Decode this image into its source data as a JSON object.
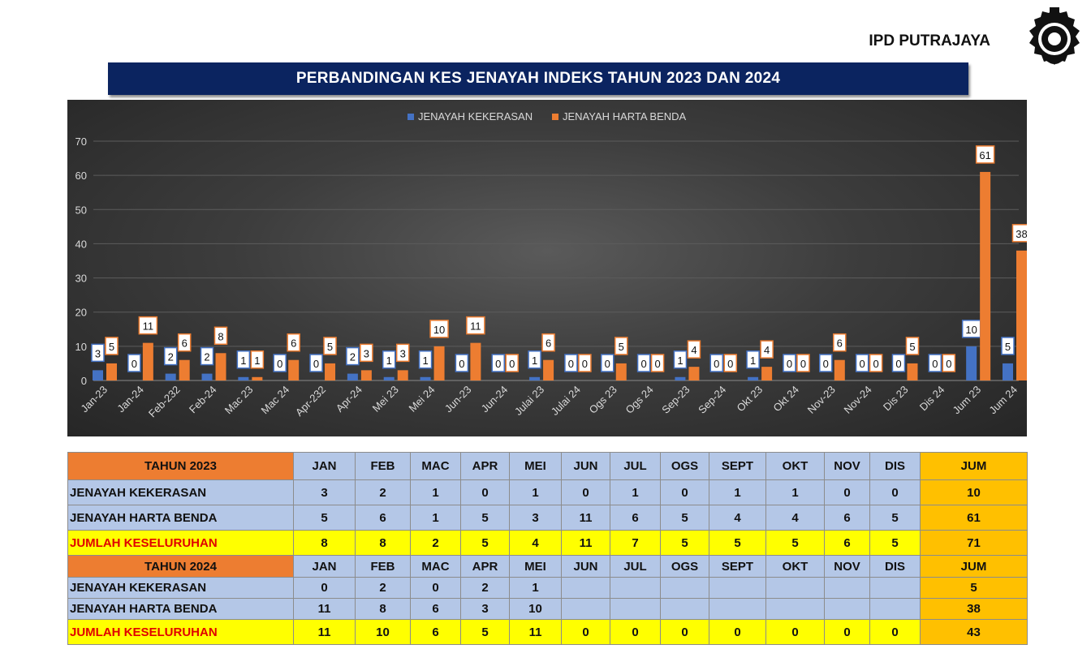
{
  "header": {
    "org_name": "IPD PUTRAJAYA",
    "title": "PERBANDINGAN KES JENAYAH INDEKS TAHUN 2023 DAN 2024"
  },
  "colors": {
    "series_kekerasan": "#4472c4",
    "series_harta_benda": "#ed7d31",
    "title_bar": "#0b2460",
    "year_header": "#ed7d31",
    "table_body": "#b4c7e7",
    "total_row": "#ffff00",
    "jum_column": "#ffc000",
    "total_label_text": "#e00000"
  },
  "chart_data": {
    "type": "bar",
    "categories": [
      "Jan-23",
      "Jan-24",
      "Feb-232",
      "Feb-24",
      "Mac 23",
      "Mac 24",
      "Apr-232",
      "Apr-24",
      "Mei 23",
      "Mei 24",
      "Jun-23",
      "Jun-24",
      "Julai 23",
      "Julai 24",
      "Ogs 23",
      "Ogs 24",
      "Sep-23",
      "Sep-24",
      "Okt 23",
      "Okt 24",
      "Nov-23",
      "Nov-24",
      "Dis 23",
      "Dis 24",
      "Jum  23",
      "Jum 24"
    ],
    "series": [
      {
        "name": "JENAYAH KEKERASAN",
        "values": [
          3,
          0,
          2,
          2,
          1,
          0,
          0,
          2,
          1,
          1,
          0,
          0,
          1,
          0,
          0,
          0,
          1,
          0,
          1,
          0,
          0,
          0,
          0,
          0,
          10,
          5
        ]
      },
      {
        "name": "JENAYAH HARTA BENDA",
        "values": [
          5,
          11,
          6,
          8,
          1,
          6,
          5,
          3,
          3,
          10,
          11,
          0,
          6,
          0,
          5,
          0,
          4,
          0,
          4,
          0,
          6,
          0,
          5,
          0,
          61,
          38
        ]
      }
    ],
    "yticks": [
      "0",
      "10",
      "20",
      "30",
      "40",
      "50",
      "60",
      "70"
    ],
    "ylim": [
      0,
      70
    ],
    "grid": true,
    "legend": "top-center"
  },
  "table": {
    "months": [
      "JAN",
      "FEB",
      "MAC",
      "APR",
      "MEI",
      "JUN",
      "JUL",
      "OGS",
      "SEPT",
      "OKT",
      "NOV",
      "DIS"
    ],
    "jum_label": "JUM",
    "y2023": {
      "label": "TAHUN 2023",
      "kekerasan": {
        "label": "JENAYAH KEKERASAN",
        "values": [
          "3",
          "2",
          "1",
          "0",
          "1",
          "0",
          "1",
          "0",
          "1",
          "1",
          "0",
          "0"
        ],
        "jum": "10"
      },
      "harta": {
        "label": "JENAYAH HARTA BENDA",
        "values": [
          "5",
          "6",
          "1",
          "5",
          "3",
          "11",
          "6",
          "5",
          "4",
          "4",
          "6",
          "5"
        ],
        "jum": "61"
      },
      "total": {
        "label": "JUMLAH KESELURUHAN",
        "values": [
          "8",
          "8",
          "2",
          "5",
          "4",
          "11",
          "7",
          "5",
          "5",
          "5",
          "6",
          "5"
        ],
        "jum": "71"
      }
    },
    "y2024": {
      "label": "TAHUN 2024",
      "kekerasan": {
        "label": "JENAYAH KEKERASAN",
        "values": [
          "0",
          "2",
          "0",
          "2",
          "1",
          "",
          "",
          "",
          "",
          "",
          "",
          ""
        ],
        "jum": "5"
      },
      "harta": {
        "label": "JENAYAH HARTA BENDA",
        "values": [
          "11",
          "8",
          "6",
          "3",
          "10",
          "",
          "",
          "",
          "",
          "",
          "",
          ""
        ],
        "jum": "38"
      },
      "total": {
        "label": "JUMLAH KESELURUHAN",
        "values": [
          "11",
          "10",
          "6",
          "5",
          "11",
          "0",
          "0",
          "0",
          "0",
          "0",
          "0",
          "0"
        ],
        "jum": "43"
      }
    }
  }
}
